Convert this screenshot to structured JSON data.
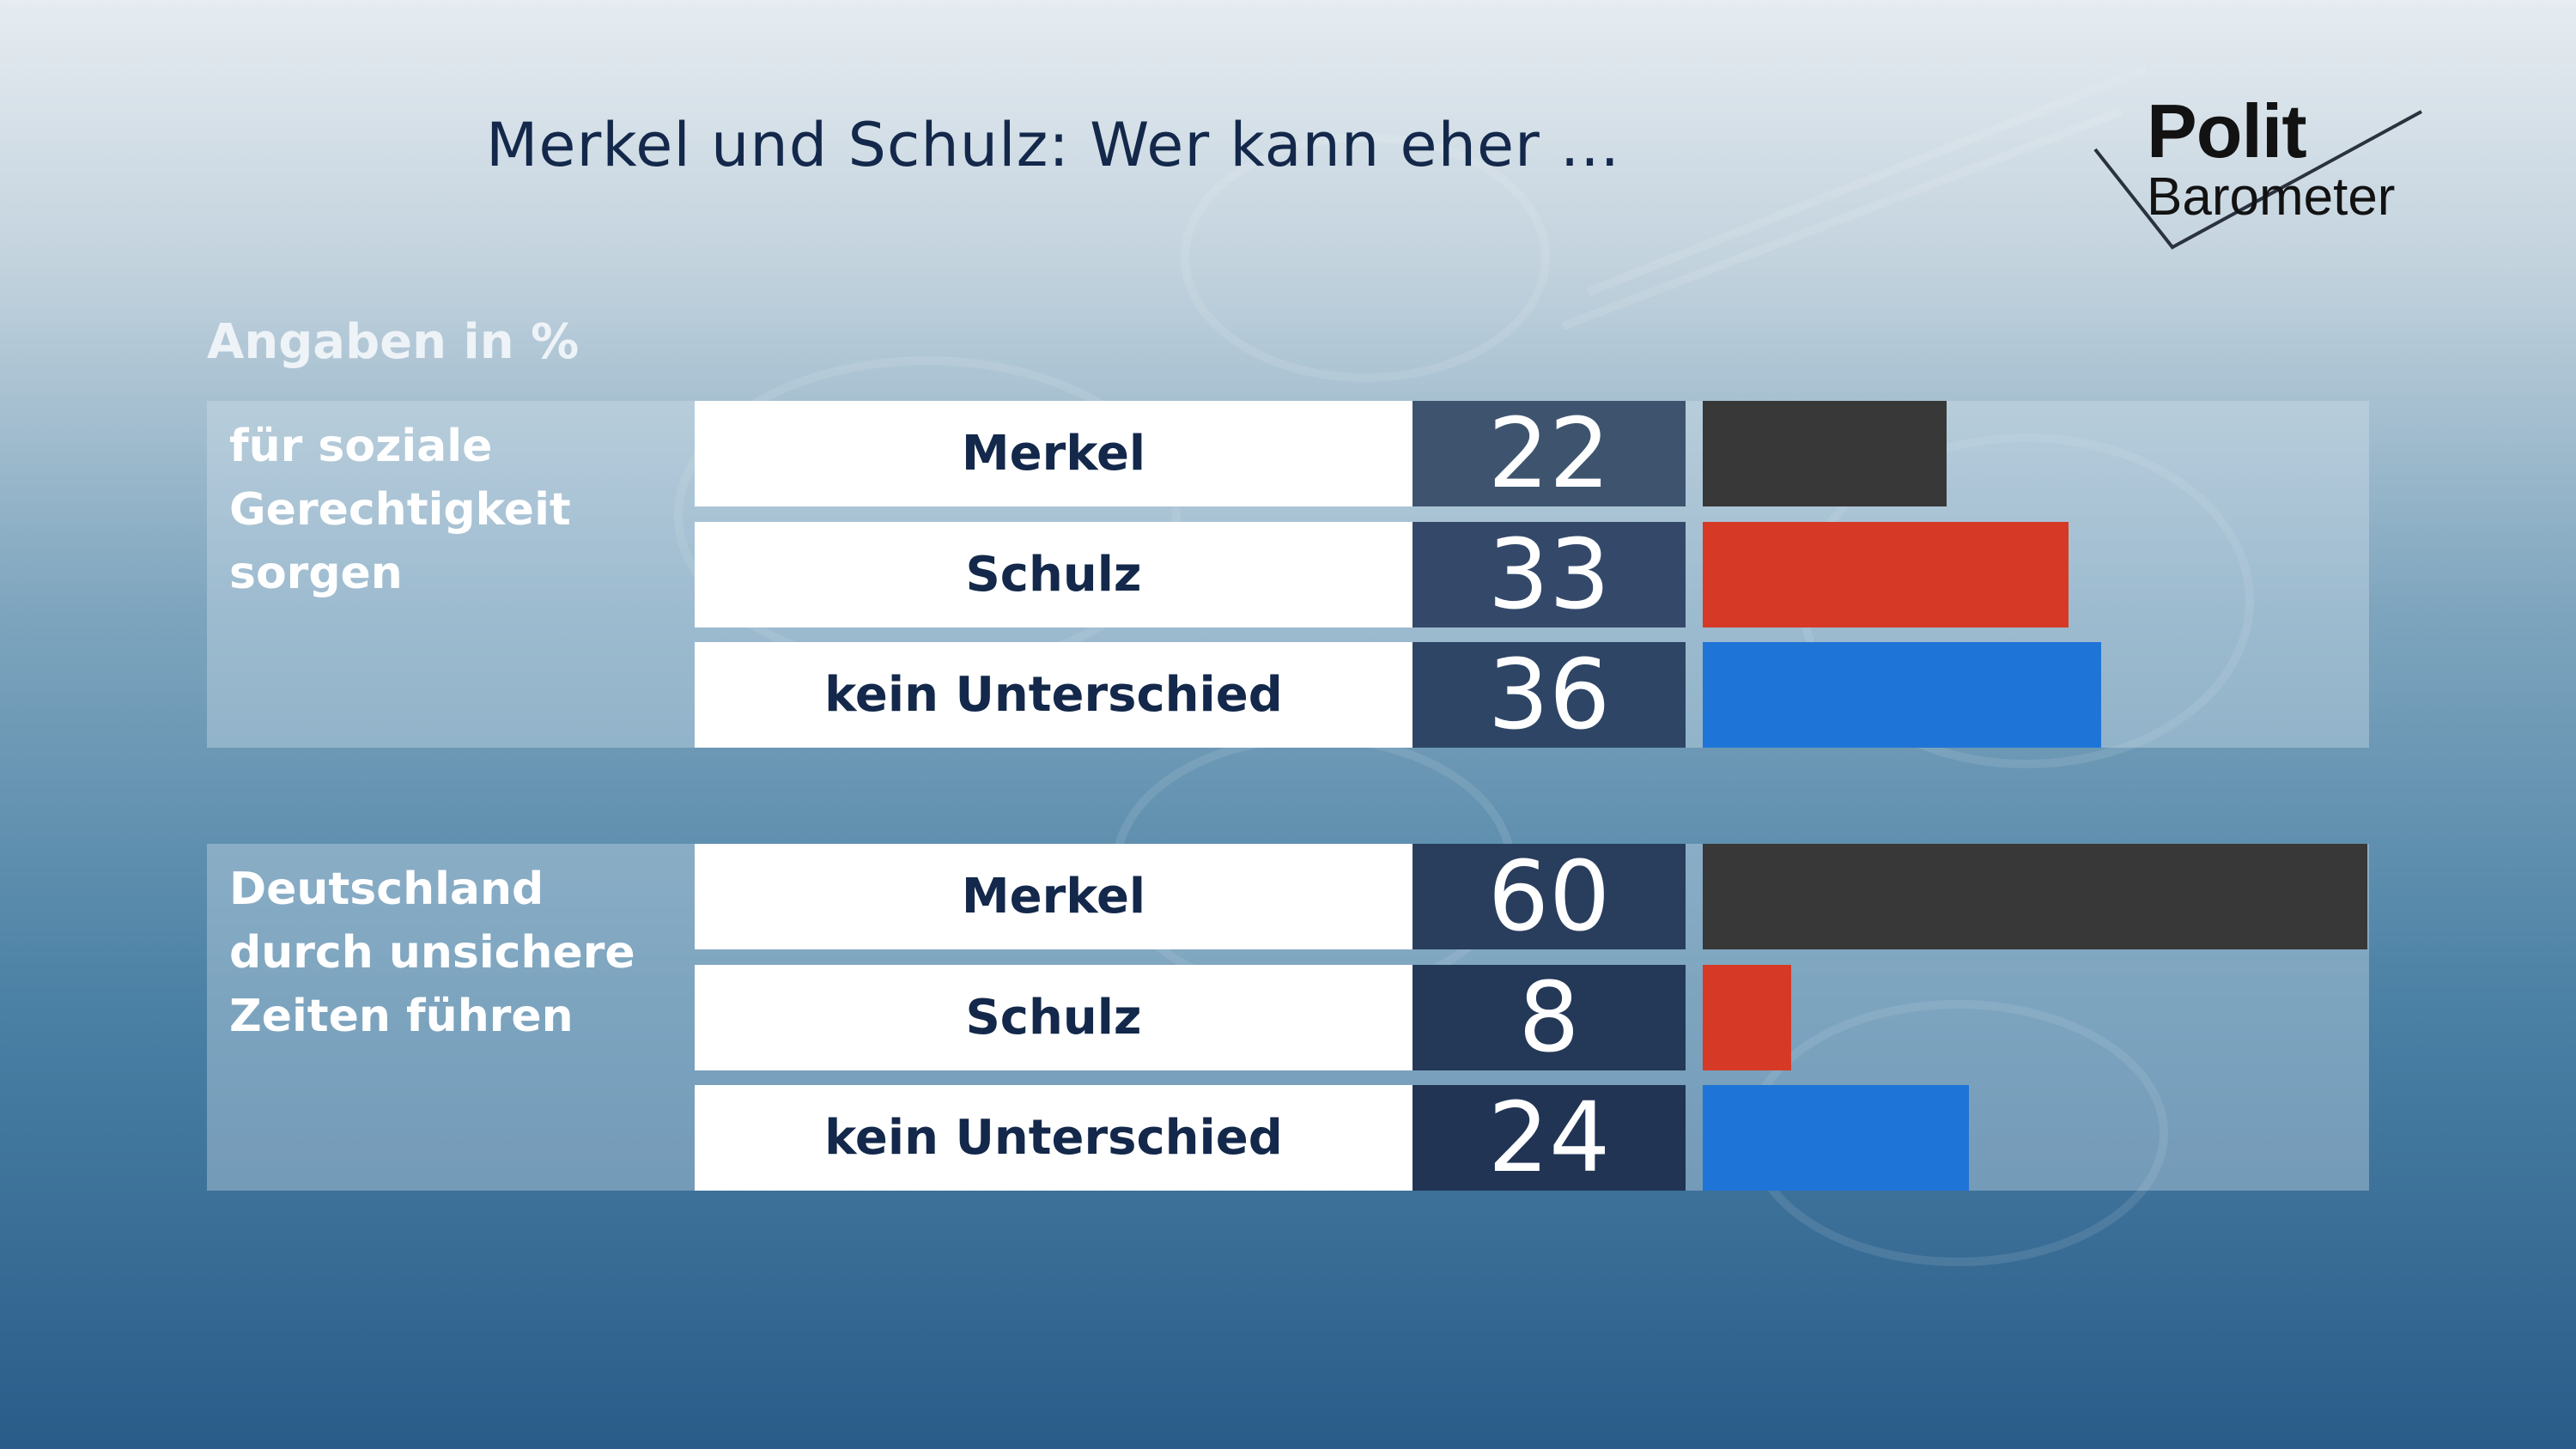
{
  "title": "Merkel und Schulz: Wer kann eher ...",
  "subtitle": "Angaben in %",
  "logo": {
    "top": "Polit",
    "bottom": "Barometer"
  },
  "colors": {
    "merkel": "#383838",
    "schulz": "#d63a26",
    "kein_unterschied": "#1f74d8",
    "value_box": [
      "#3e546e",
      "#34496a",
      "#2e4566",
      "#293d5d",
      "#243858",
      "#213454"
    ]
  },
  "chart_data": {
    "type": "bar",
    "orientation": "horizontal",
    "unit": "%",
    "xlim": [
      0,
      60
    ],
    "groups": [
      {
        "label": "für soziale Gerechtigkeit sorgen",
        "items": [
          {
            "name": "Merkel",
            "value": 22
          },
          {
            "name": "Schulz",
            "value": 33
          },
          {
            "name": "kein Unterschied",
            "value": 36
          }
        ]
      },
      {
        "label": "Deutschland durch unsichere Zeiten führen",
        "items": [
          {
            "name": "Merkel",
            "value": 60
          },
          {
            "name": "Schulz",
            "value": 8
          },
          {
            "name": "kein Unterschied",
            "value": 24
          }
        ]
      }
    ]
  }
}
